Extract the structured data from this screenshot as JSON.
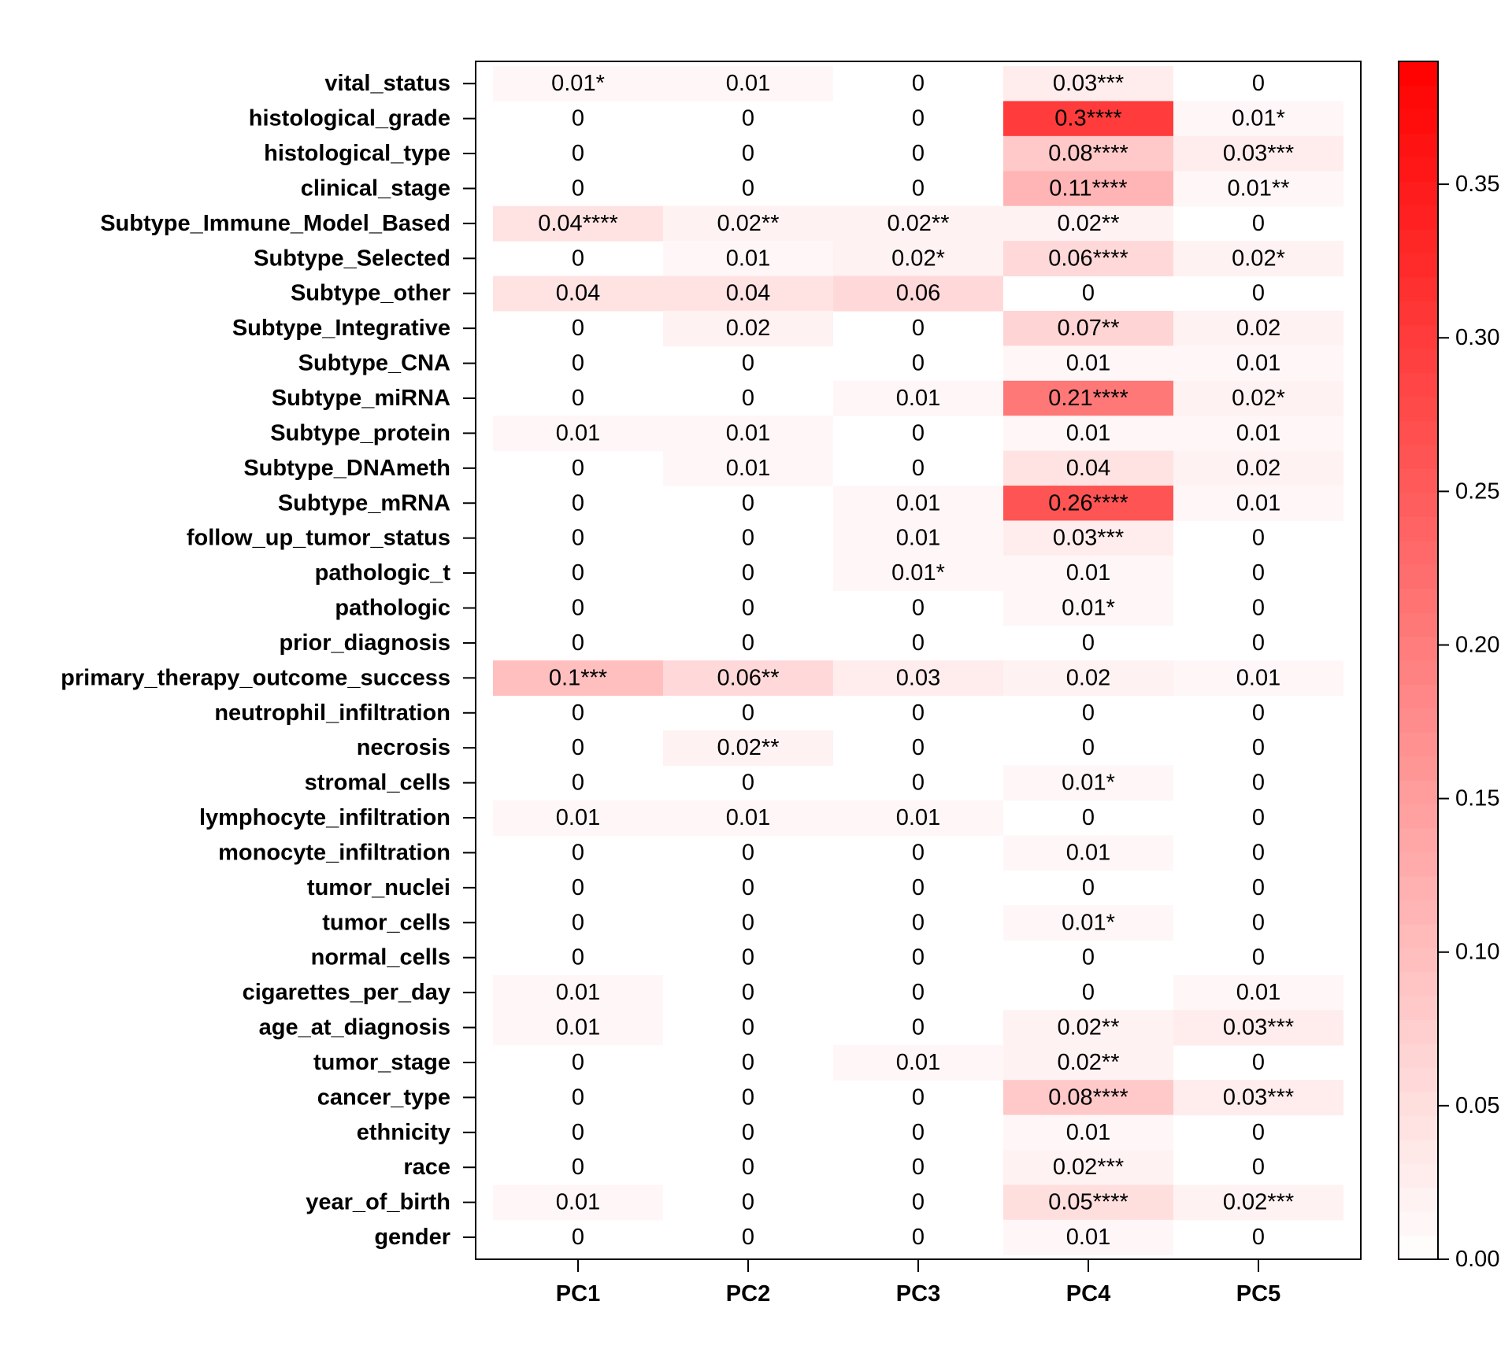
{
  "chart_data": {
    "type": "heatmap",
    "title": "",
    "xlabel": "",
    "ylabel": "",
    "columns": [
      "PC1",
      "PC2",
      "PC3",
      "PC4",
      "PC5"
    ],
    "rows": [
      "vital_status",
      "histological_grade",
      "histological_type",
      "clinical_stage",
      "Subtype_Immune_Model_Based",
      "Subtype_Selected",
      "Subtype_other",
      "Subtype_Integrative",
      "Subtype_CNA",
      "Subtype_miRNA",
      "Subtype_protein",
      "Subtype_DNAmeth",
      "Subtype_mRNA",
      "follow_up_tumor_status",
      "pathologic_t",
      "pathologic",
      "prior_diagnosis",
      "primary_therapy_outcome_success",
      "neutrophil_infiltration",
      "necrosis",
      "stromal_cells",
      "lymphocyte_infiltration",
      "monocyte_infiltration",
      "tumor_nuclei",
      "tumor_cells",
      "normal_cells",
      "cigarettes_per_day",
      "age_at_diagnosis",
      "tumor_stage",
      "cancer_type",
      "ethnicity",
      "race",
      "year_of_birth",
      "gender"
    ],
    "cell_labels": [
      [
        "0.01*",
        "0.01",
        "0",
        "0.03***",
        "0"
      ],
      [
        "0",
        "0",
        "0",
        "0.3****",
        "0.01*"
      ],
      [
        "0",
        "0",
        "0",
        "0.08****",
        "0.03***"
      ],
      [
        "0",
        "0",
        "0",
        "0.11****",
        "0.01**"
      ],
      [
        "0.04****",
        "0.02**",
        "0.02**",
        "0.02**",
        "0"
      ],
      [
        "0",
        "0.01",
        "0.02*",
        "0.06****",
        "0.02*"
      ],
      [
        "0.04",
        "0.04",
        "0.06",
        "0",
        "0"
      ],
      [
        "0",
        "0.02",
        "0",
        "0.07**",
        "0.02"
      ],
      [
        "0",
        "0",
        "0",
        "0.01",
        "0.01"
      ],
      [
        "0",
        "0",
        "0.01",
        "0.21****",
        "0.02*"
      ],
      [
        "0.01",
        "0.01",
        "0",
        "0.01",
        "0.01"
      ],
      [
        "0",
        "0.01",
        "0",
        "0.04",
        "0.02"
      ],
      [
        "0",
        "0",
        "0.01",
        "0.26****",
        "0.01"
      ],
      [
        "0",
        "0",
        "0.01",
        "0.03***",
        "0"
      ],
      [
        "0",
        "0",
        "0.01*",
        "0.01",
        "0"
      ],
      [
        "0",
        "0",
        "0",
        "0.01*",
        "0"
      ],
      [
        "0",
        "0",
        "0",
        "0",
        "0"
      ],
      [
        "0.1***",
        "0.06**",
        "0.03",
        "0.02",
        "0.01"
      ],
      [
        "0",
        "0",
        "0",
        "0",
        "0"
      ],
      [
        "0",
        "0.02**",
        "0",
        "0",
        "0"
      ],
      [
        "0",
        "0",
        "0",
        "0.01*",
        "0"
      ],
      [
        "0.01",
        "0.01",
        "0.01",
        "0",
        "0"
      ],
      [
        "0",
        "0",
        "0",
        "0.01",
        "0"
      ],
      [
        "0",
        "0",
        "0",
        "0",
        "0"
      ],
      [
        "0",
        "0",
        "0",
        "0.01*",
        "0"
      ],
      [
        "0",
        "0",
        "0",
        "0",
        "0"
      ],
      [
        "0.01",
        "0",
        "0",
        "0",
        "0.01"
      ],
      [
        "0.01",
        "0",
        "0",
        "0.02**",
        "0.03***"
      ],
      [
        "0",
        "0",
        "0.01",
        "0.02**",
        "0"
      ],
      [
        "0",
        "0",
        "0",
        "0.08****",
        "0.03***"
      ],
      [
        "0",
        "0",
        "0",
        "0.01",
        "0"
      ],
      [
        "0",
        "0",
        "0",
        "0.02***",
        "0"
      ],
      [
        "0.01",
        "0",
        "0",
        "0.05****",
        "0.02***"
      ],
      [
        "0",
        "0",
        "0",
        "0.01",
        "0"
      ]
    ],
    "colorbar": {
      "min": 0,
      "max": 0.39,
      "ticks": [
        0.0,
        0.05,
        0.1,
        0.15,
        0.2,
        0.25,
        0.3,
        0.35
      ],
      "tick_labels": [
        "0.00",
        "0.05",
        "0.10",
        "0.15",
        "0.20",
        "0.25",
        "0.30",
        "0.35"
      ],
      "low_color": "#ffffff",
      "high_color": "#ff0000",
      "steps": 50
    },
    "grid": false,
    "legend": "colorbar-right"
  }
}
